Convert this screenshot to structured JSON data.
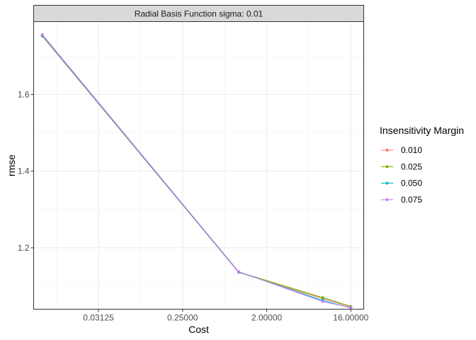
{
  "chart_data": {
    "type": "line",
    "facet_label": "Radial Basis Function sigma: 0.01",
    "xlabel": "Cost",
    "ylabel": "rmse",
    "x_scale": "log2",
    "x": [
      0.0078125,
      1,
      8,
      16
    ],
    "xlim": [
      0.0063,
      22
    ],
    "x_ticks": [
      0.03125,
      0.25,
      2,
      16
    ],
    "x_tick_labels": [
      "0.03125",
      "0.25000",
      "2.00000",
      "16.00000"
    ],
    "ylim": [
      1.04,
      1.79
    ],
    "y_ticks": [
      1.2,
      1.4,
      1.6
    ],
    "y_tick_labels": [
      "1.2",
      "1.4",
      "1.6"
    ],
    "grid": true,
    "legend_title": "Insensitivity Margin",
    "legend_position": "right",
    "series": [
      {
        "name": "0.010",
        "color": "#F8766D",
        "values": [
          1.752,
          1.136,
          1.068,
          1.046
        ]
      },
      {
        "name": "0.025",
        "color": "#7CAE00",
        "values": [
          1.753,
          1.137,
          1.07,
          1.047
        ]
      },
      {
        "name": "0.050",
        "color": "#00BFC4",
        "values": [
          1.754,
          1.137,
          1.063,
          1.043
        ]
      },
      {
        "name": "0.075",
        "color": "#C77CFF",
        "values": [
          1.756,
          1.138,
          1.06,
          1.044
        ]
      }
    ]
  }
}
